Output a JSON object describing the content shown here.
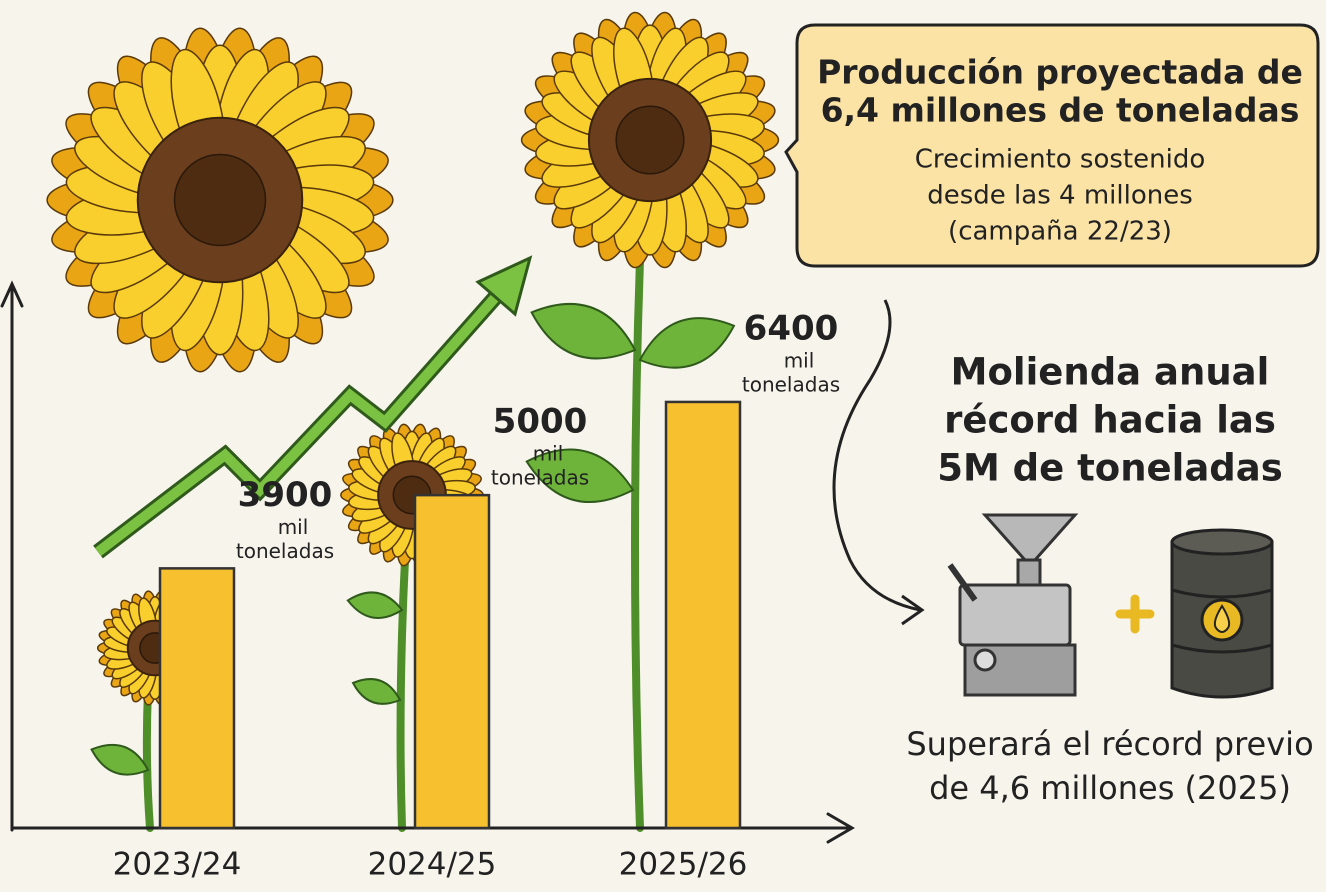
{
  "chart_data": {
    "type": "bar",
    "categories": [
      "2023/24",
      "2024/25",
      "2025/26"
    ],
    "values": [
      3900,
      5000,
      6400
    ],
    "unit": [
      "mil",
      "toneladas"
    ],
    "color": "#f6c02e",
    "ylim": [
      0,
      7000
    ],
    "callout": {
      "title": [
        "Producción proyectada de",
        "6,4 millones de toneladas"
      ],
      "text": [
        "Crecimiento sostenido",
        "desde las 4 millones",
        "(campaña 22/23)"
      ]
    },
    "side": {
      "title": [
        "Molienda anual",
        "récord hacia las",
        "5M de toneladas"
      ],
      "note": [
        "Superará el récord previo",
        "de 4,6 millones (2025)"
      ]
    }
  }
}
